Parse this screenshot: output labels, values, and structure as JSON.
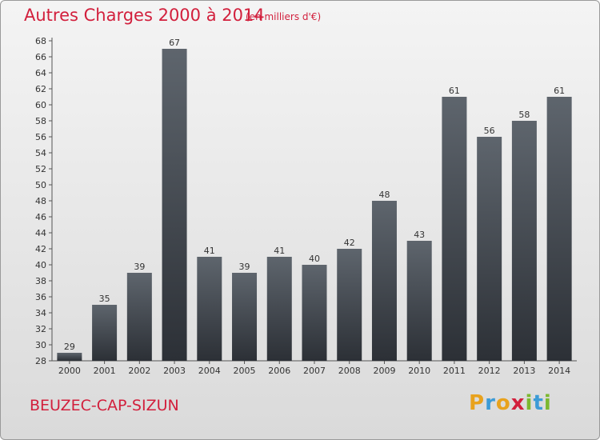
{
  "header": {
    "title": "Autres Charges 2000 à 2014",
    "subtitle": "(en milliers d'€)"
  },
  "footer": {
    "commune": "BEUZEC-CAP-SIZUN",
    "logo_letters": [
      "P",
      "r",
      "o",
      "x",
      "i",
      "t",
      "i"
    ],
    "logo_colors": [
      "#e8a21d",
      "#3c9bd6",
      "#e8a21d",
      "#d21f3c",
      "#7cb82f",
      "#3c9bd6",
      "#7cb82f"
    ]
  },
  "colors": {
    "title": "#d21f3c",
    "bar_top": "#5e656d",
    "bar_bottom": "#2c3036"
  },
  "chart_data": {
    "type": "bar",
    "title": "Autres Charges 2000 à 2014",
    "xlabel": "",
    "ylabel": "",
    "categories": [
      "2000",
      "2001",
      "2002",
      "2003",
      "2004",
      "2005",
      "2006",
      "2007",
      "2008",
      "2009",
      "2010",
      "2011",
      "2012",
      "2013",
      "2014"
    ],
    "values": [
      29,
      35,
      39,
      67,
      41,
      39,
      41,
      40,
      42,
      48,
      43,
      61,
      56,
      58,
      61
    ],
    "ylim": [
      28,
      68
    ],
    "yticks": [
      "28",
      "30",
      "32",
      "34",
      "36",
      "38",
      "40",
      "42",
      "44",
      "46",
      "48",
      "50",
      "52",
      "54",
      "56",
      "58",
      "60",
      "62",
      "64",
      "66",
      "68"
    ],
    "grid": false,
    "legend": "none"
  }
}
